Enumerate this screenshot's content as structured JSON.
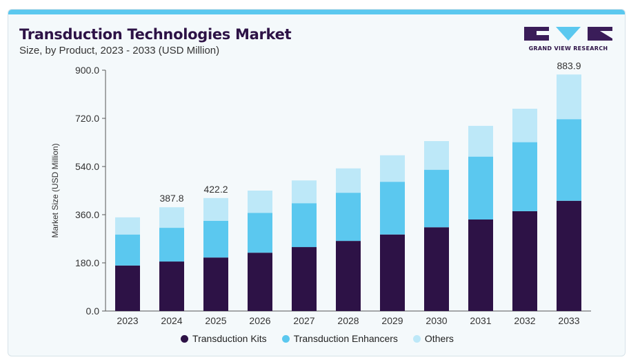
{
  "header": {
    "title": "Transduction Technologies Market",
    "subtitle": "Size, by Product, 2023 - 2033 (USD Million)"
  },
  "logo": {
    "text": "GRAND VIEW RESEARCH",
    "colors": {
      "dark": "#3a1d59",
      "accent": "#5bc8ef"
    }
  },
  "chart_data": {
    "type": "bar",
    "stacked": true,
    "title": "Transduction Technologies Market",
    "subtitle": "Size, by Product, 2023 - 2033 (USD Million)",
    "xlabel": "",
    "ylabel": "Market Size (USD Million)",
    "ylim": [
      0,
      900
    ],
    "yticks": [
      "0.0",
      "180.0",
      "360.0",
      "540.0",
      "720.0",
      "900.0"
    ],
    "categories": [
      "2023",
      "2024",
      "2025",
      "2026",
      "2027",
      "2028",
      "2029",
      "2030",
      "2031",
      "2032",
      "2033"
    ],
    "series": [
      {
        "name": "Transduction Kits",
        "color": "#2d1246",
        "values": [
          170,
          185,
          200,
          218,
          239,
          262,
          286,
          313,
          342,
          373,
          412
        ]
      },
      {
        "name": "Transduction Enhancers",
        "color": "#5bc8ef",
        "values": [
          116,
          126,
          137,
          149,
          164,
          180,
          197,
          215,
          235,
          258,
          305
        ]
      },
      {
        "name": "Others",
        "color": "#bde8f8",
        "values": [
          64,
          76.8,
          85.2,
          83,
          85,
          91,
          99,
          107,
          115,
          125,
          166.9
        ]
      }
    ],
    "total_labels": [
      {
        "category": "2024",
        "label": "387.8",
        "value": 387.8
      },
      {
        "category": "2025",
        "label": "422.2",
        "value": 422.2
      },
      {
        "category": "2033",
        "label": "883.9",
        "value": 883.9
      }
    ],
    "grid": false,
    "legend_position": "bottom-center"
  }
}
